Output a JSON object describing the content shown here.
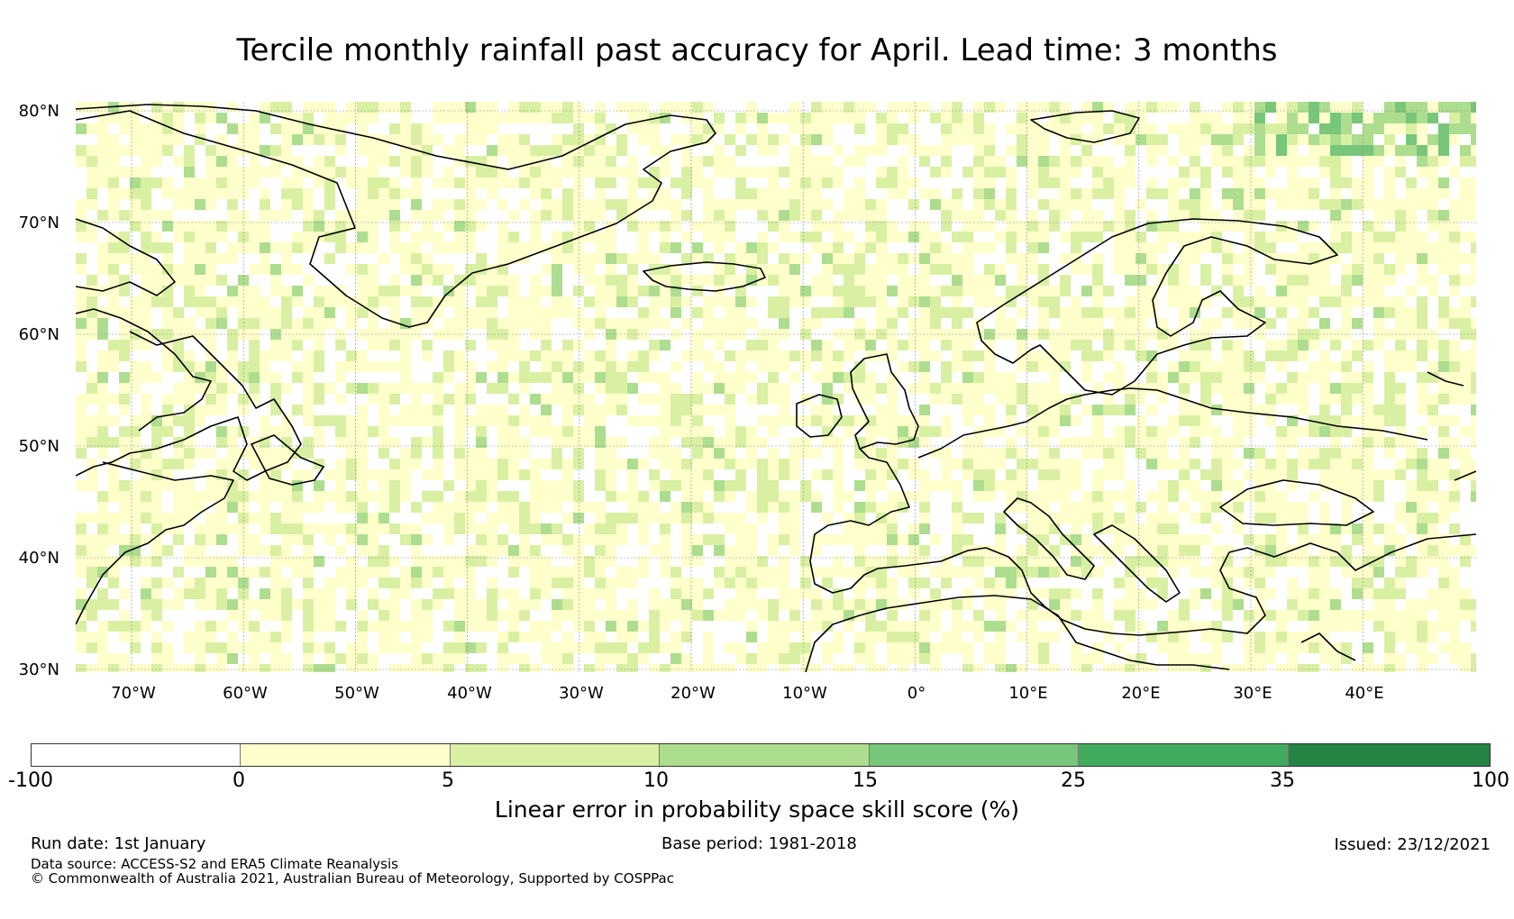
{
  "title": "Tercile monthly rainfall past accuracy for April. Lead time: 3 months",
  "map": {
    "lat_labels": [
      "80°N",
      "70°N",
      "60°N",
      "50°N",
      "40°N",
      "30°N"
    ],
    "lon_labels": [
      "70°W",
      "60°W",
      "50°W",
      "40°W",
      "30°W",
      "20°W",
      "10°W",
      "0°",
      "10°E",
      "20°E",
      "30°E",
      "40°E"
    ]
  },
  "colorbar": {
    "ticks": [
      "-100",
      "0",
      "5",
      "10",
      "15",
      "25",
      "35",
      "100"
    ],
    "colors": [
      "#ffffff",
      "#ffffcc",
      "#d9f0a3",
      "#addd8e",
      "#78c679",
      "#41ab5d",
      "#238443"
    ],
    "label": "Linear error in probability space skill score (%)"
  },
  "footer": {
    "run_date": "Run date: 1st January",
    "base_period": "Base period: 1981-2018",
    "issued": "Issued: 23/12/2021",
    "data_source": "Data source: ACCESS-S2 and ERA5 Climate Reanalysis",
    "copyright": "© Commonwealth of Australia 2021, Australian Bureau of Meteorology, Supported by COSPPac"
  }
}
